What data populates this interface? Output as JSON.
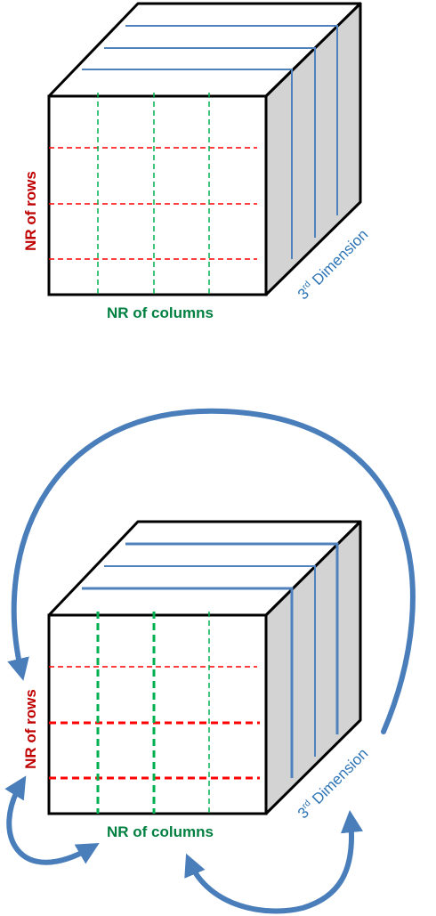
{
  "colors": {
    "outline": "#000000",
    "side_face": "#d3d3d3",
    "rows_color": "#c00000",
    "cols_color": "#008040",
    "dim_color": "#2e75b6",
    "dash_red": "#ff0000",
    "dash_green": "#00b050",
    "solid_blue": "#4f81bd",
    "arrow_blue": "#4a7ebb"
  },
  "top_diagram": {
    "rows_label": "NR of rows",
    "cols_label": "NR of columns",
    "dim_label_main": "3",
    "dim_label_sup": "rd",
    "dim_label_rest": " Dimension"
  },
  "bottom_diagram": {
    "rows_label": "NR of rows",
    "cols_label": "NR of columns",
    "dim_label_main": "3",
    "dim_label_sup": "rd",
    "dim_label_rest": " Dimension"
  }
}
